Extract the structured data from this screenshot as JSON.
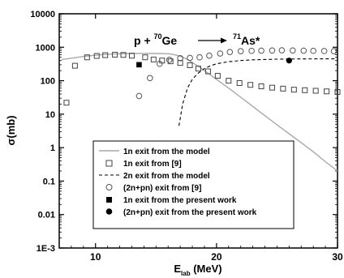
{
  "chart_data": {
    "type": "scatter",
    "title": "",
    "xlabel": "E",
    "xlabel_sub": "lab",
    "xlabel_unit": " (MeV)",
    "ylabel": "σ(mb)",
    "xlim": [
      7,
      30
    ],
    "ylim": [
      0.001,
      10000
    ],
    "y_scale": "log",
    "x_ticks": [
      {
        "value": 10,
        "label": "10"
      },
      {
        "value": 20,
        "label": "20"
      },
      {
        "value": 30,
        "label": "30"
      }
    ],
    "y_ticks": [
      {
        "value": 10000,
        "label": "10000"
      },
      {
        "value": 1000,
        "label": "1000"
      },
      {
        "value": 100,
        "label": "100"
      },
      {
        "value": 10,
        "label": "10"
      },
      {
        "value": 1,
        "label": "1"
      },
      {
        "value": 0.1,
        "label": "0.1"
      },
      {
        "value": 0.01,
        "label": "0.01"
      },
      {
        "value": 0.001,
        "label": "1E-3"
      }
    ],
    "annotation": {
      "projectile": "p + ",
      "target_mass": "70",
      "target": "Ge",
      "product_mass": "71",
      "product": "As*"
    },
    "legend_position": "bottom-right",
    "series": [
      {
        "name": "1n exit from the model",
        "style": "solid-line",
        "color": "#a8a8a8",
        "x": [
          7.2,
          8,
          9,
          10,
          11,
          12,
          13,
          14,
          15,
          16,
          16.5,
          17,
          17.5,
          18,
          18.5,
          19,
          20,
          21,
          22,
          23,
          24,
          25,
          26,
          27,
          28,
          29,
          30
        ],
        "y": [
          430,
          470,
          530,
          580,
          620,
          640,
          650,
          655,
          650,
          640,
          600,
          540,
          450,
          350,
          270,
          200,
          110,
          60,
          32,
          17,
          9,
          4.8,
          2.6,
          1.4,
          0.75,
          0.38,
          0.2
        ]
      },
      {
        "name": "1n exit from [9]",
        "style": "open-square",
        "color": "#444444",
        "x": [
          7.6,
          8.3,
          9.3,
          10.1,
          10.8,
          11.6,
          12.3,
          13.0,
          14.1,
          14.8,
          15.5,
          16.2,
          17.0,
          17.8,
          18.5,
          19.3,
          20.1,
          21.0,
          21.9,
          22.8,
          23.7,
          24.6,
          25.5,
          26.4,
          27.3,
          28.2,
          29.1,
          30.0
        ],
        "y": [
          22,
          280,
          500,
          550,
          580,
          600,
          590,
          560,
          500,
          430,
          400,
          380,
          340,
          290,
          230,
          190,
          140,
          100,
          85,
          75,
          68,
          62,
          58,
          54,
          52,
          50,
          48,
          46
        ]
      },
      {
        "name": "2n exit from the model",
        "style": "dashed-line",
        "color": "#000000",
        "x": [
          16.9,
          17.2,
          17.6,
          18,
          18.5,
          19,
          19.5,
          20,
          21,
          22,
          23,
          24,
          25,
          26,
          27,
          28,
          29,
          30
        ],
        "y": [
          4.5,
          20,
          60,
          110,
          170,
          230,
          280,
          320,
          370,
          400,
          420,
          430,
          440,
          445,
          448,
          450,
          450,
          452
        ]
      },
      {
        "name": "(2n+pn) exit from [9]",
        "style": "open-circle",
        "color": "#555555",
        "x": [
          13.6,
          14.5,
          15.3,
          16.1,
          17.0,
          17.8,
          18.6,
          19.4,
          20.3,
          21.1,
          22.0,
          22.9,
          23.7,
          24.6,
          25.4,
          26.3,
          27.2,
          28.0,
          28.9,
          29.7
        ],
        "y": [
          35,
          120,
          320,
          420,
          470,
          480,
          500,
          560,
          650,
          720,
          760,
          780,
          790,
          800,
          810,
          800,
          790,
          780,
          770,
          760
        ]
      },
      {
        "name": "1n exit from the present work",
        "style": "filled-square",
        "color": "#000000",
        "x": [
          13.6
        ],
        "y": [
          300
        ]
      },
      {
        "name": "(2n+pn) exit from the present work",
        "style": "filled-circle",
        "color": "#000000",
        "x": [
          26.0
        ],
        "y": [
          400
        ]
      }
    ]
  }
}
